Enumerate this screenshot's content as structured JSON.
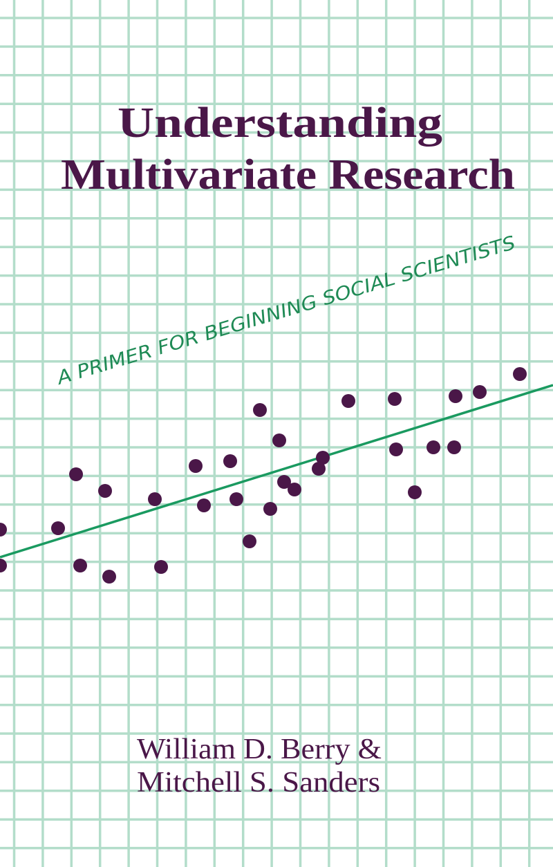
{
  "cover": {
    "title_line1": "Understanding",
    "title_line2": "Multivariate Research",
    "subtitle": "A PRIMER FOR BEGINNING SOCIAL SCIENTISTS",
    "author_line1": "William D. Berry &",
    "author_line2": "Mitchell S. Sanders"
  },
  "colors": {
    "background": "#ffffff",
    "grid": "#b3ddca",
    "title": "#4a1748",
    "subtitle": "#1f8a55",
    "dots": "#4a1748",
    "regression_line": "#1a9a60"
  }
}
